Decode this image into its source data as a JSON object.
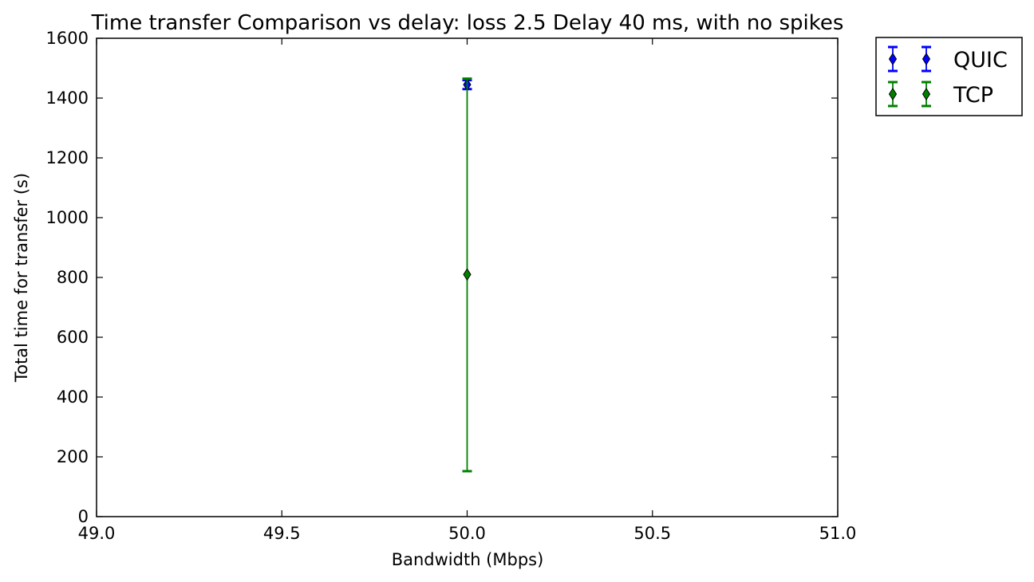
{
  "chart_data": {
    "type": "scatter",
    "title": "Time transfer Comparison vs delay: loss 2.5 Delay 40 ms, with no spikes",
    "xlabel": "Bandwidth (Mbps)",
    "ylabel": "Total time for transfer (s)",
    "xlim": [
      49.0,
      51.0
    ],
    "ylim": [
      0,
      1600
    ],
    "xticks": [
      49.0,
      49.5,
      50.0,
      50.5,
      51.0
    ],
    "xtick_labels": [
      "49.0",
      "49.5",
      "50.0",
      "50.5",
      "51.0"
    ],
    "yticks": [
      0,
      200,
      400,
      600,
      800,
      1000,
      1200,
      1400,
      1600
    ],
    "ytick_labels": [
      "0",
      "200",
      "400",
      "600",
      "800",
      "1000",
      "1200",
      "1400",
      "1600"
    ],
    "grid": false,
    "legend_position": "outside-top-right",
    "series": [
      {
        "name": "QUIC",
        "color": "#0000ff",
        "marker": "thin-diamond",
        "points": [
          {
            "x": 50.0,
            "y": 1445,
            "yerr_low": 1430,
            "yerr_high": 1460
          }
        ]
      },
      {
        "name": "TCP",
        "color": "#008000",
        "marker": "thin-diamond",
        "points": [
          {
            "x": 50.0,
            "y": 810,
            "yerr_low": 152,
            "yerr_high": 1465
          }
        ]
      }
    ]
  }
}
